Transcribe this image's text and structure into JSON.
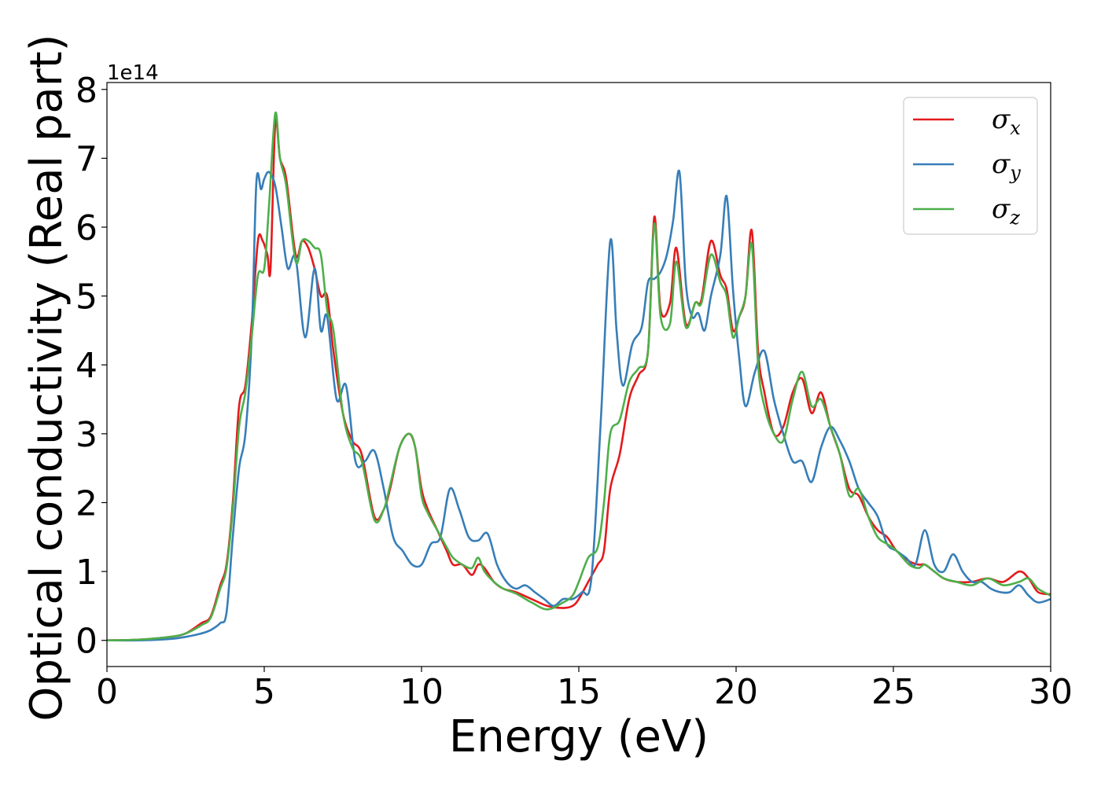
{
  "chart_data": {
    "type": "line",
    "xlabel": "Energy (eV)",
    "ylabel": "Optical conductivity (Real part)",
    "y_offset_label": "1e14",
    "y_scale": 100000000000000.0,
    "xlim": [
      0,
      30
    ],
    "ylim": [
      -0.38,
      8.1
    ],
    "xticks": [
      0,
      5,
      10,
      15,
      20,
      25,
      30
    ],
    "yticks": [
      0,
      1,
      2,
      3,
      4,
      5,
      6,
      7,
      8
    ],
    "grid": false,
    "legend_position": "top-right",
    "series": [
      {
        "name": "σx",
        "symbol": "σ",
        "subscript": "x",
        "color": "#e41a1c",
        "x": [
          0,
          1,
          2,
          2.5,
          3.0,
          3.3,
          3.6,
          3.8,
          4.0,
          4.2,
          4.4,
          4.6,
          4.8,
          4.95,
          5.1,
          5.2,
          5.35,
          5.5,
          5.7,
          6.0,
          6.2,
          6.4,
          6.6,
          6.8,
          7.0,
          7.2,
          7.5,
          7.8,
          8.1,
          8.5,
          8.8,
          9.0,
          9.3,
          9.6,
          9.8,
          10.0,
          10.2,
          10.5,
          10.8,
          11.0,
          11.3,
          11.6,
          11.8,
          12.0,
          12.3,
          12.6,
          13.0,
          13.5,
          14.0,
          14.5,
          14.8,
          15.0,
          15.3,
          15.6,
          15.8,
          16.0,
          16.3,
          16.6,
          16.9,
          17.2,
          17.4,
          17.6,
          17.9,
          18.1,
          18.4,
          18.7,
          18.9,
          19.2,
          19.5,
          19.7,
          19.9,
          20.1,
          20.3,
          20.5,
          20.7,
          20.9,
          21.2,
          21.5,
          21.8,
          22.1,
          22.4,
          22.7,
          23.0,
          23.3,
          23.6,
          23.9,
          24.2,
          24.5,
          24.8,
          25.1,
          25.5,
          25.8,
          26.0,
          26.3,
          26.6,
          27.0,
          27.5,
          28.0,
          28.5,
          29.0,
          29.3,
          29.6,
          30.0
        ],
        "y": [
          0.0,
          0.01,
          0.05,
          0.1,
          0.25,
          0.35,
          0.8,
          1.1,
          2.0,
          3.4,
          3.7,
          4.6,
          5.8,
          5.8,
          5.6,
          5.4,
          7.5,
          7.0,
          6.7,
          5.6,
          5.8,
          5.7,
          5.4,
          5.0,
          5.0,
          4.2,
          3.3,
          2.9,
          2.7,
          1.8,
          1.9,
          2.2,
          2.8,
          3.0,
          2.8,
          2.2,
          1.9,
          1.6,
          1.3,
          1.1,
          1.1,
          0.95,
          1.1,
          1.05,
          0.85,
          0.75,
          0.7,
          0.6,
          0.5,
          0.47,
          0.5,
          0.6,
          0.85,
          1.1,
          1.3,
          2.2,
          2.7,
          3.5,
          3.85,
          4.2,
          6.15,
          4.8,
          4.9,
          5.7,
          4.6,
          4.9,
          4.95,
          5.8,
          5.3,
          5.1,
          4.5,
          4.7,
          5.0,
          5.95,
          4.2,
          3.6,
          3.0,
          3.1,
          3.6,
          3.8,
          3.3,
          3.6,
          3.1,
          2.7,
          2.2,
          2.1,
          1.8,
          1.6,
          1.5,
          1.3,
          1.15,
          1.1,
          1.1,
          1.0,
          0.9,
          0.85,
          0.85,
          0.9,
          0.85,
          1.0,
          0.9,
          0.7,
          0.67
        ]
      },
      {
        "name": "σy",
        "symbol": "σ",
        "subscript": "y",
        "color": "#377eb8",
        "x": [
          0,
          1,
          2,
          2.5,
          3.0,
          3.3,
          3.6,
          3.8,
          4.0,
          4.2,
          4.4,
          4.6,
          4.75,
          4.9,
          5.0,
          5.15,
          5.35,
          5.55,
          5.75,
          6.0,
          6.3,
          6.6,
          6.8,
          7.0,
          7.3,
          7.6,
          7.9,
          8.2,
          8.5,
          8.8,
          9.1,
          9.4,
          9.7,
          10.0,
          10.3,
          10.6,
          10.9,
          11.2,
          11.5,
          11.8,
          12.1,
          12.4,
          12.7,
          13.0,
          13.3,
          13.6,
          13.9,
          14.2,
          14.5,
          14.8,
          15.1,
          15.4,
          15.7,
          16.0,
          16.2,
          16.4,
          16.7,
          17.0,
          17.2,
          17.4,
          17.6,
          17.8,
          18.0,
          18.2,
          18.4,
          18.6,
          18.8,
          19.0,
          19.2,
          19.5,
          19.7,
          19.9,
          20.1,
          20.3,
          20.6,
          20.9,
          21.2,
          21.5,
          21.8,
          22.1,
          22.4,
          22.7,
          23.0,
          23.3,
          23.6,
          23.9,
          24.2,
          24.5,
          24.8,
          25.1,
          25.4,
          25.7,
          26.0,
          26.3,
          26.6,
          26.9,
          27.2,
          27.5,
          27.8,
          28.1,
          28.4,
          28.7,
          29.0,
          29.3,
          29.6,
          30.0
        ],
        "y": [
          0.0,
          0.0,
          0.02,
          0.05,
          0.1,
          0.15,
          0.25,
          0.4,
          1.5,
          2.5,
          3.0,
          4.4,
          6.65,
          6.55,
          6.7,
          6.8,
          6.6,
          6.0,
          5.4,
          5.55,
          4.4,
          5.4,
          4.5,
          4.7,
          3.5,
          3.7,
          2.6,
          2.6,
          2.75,
          2.2,
          1.5,
          1.3,
          1.1,
          1.1,
          1.4,
          1.5,
          2.2,
          1.9,
          1.5,
          1.45,
          1.55,
          1.1,
          0.85,
          0.75,
          0.8,
          0.7,
          0.6,
          0.5,
          0.6,
          0.6,
          0.7,
          0.9,
          3.2,
          5.8,
          4.5,
          3.7,
          4.3,
          4.55,
          5.2,
          5.25,
          5.35,
          5.6,
          6.1,
          6.8,
          5.2,
          4.7,
          4.75,
          4.5,
          5.0,
          5.6,
          6.45,
          5.1,
          4.1,
          3.4,
          3.9,
          4.2,
          3.5,
          3.0,
          2.6,
          2.6,
          2.3,
          2.8,
          3.1,
          2.9,
          2.6,
          2.2,
          2.0,
          1.8,
          1.4,
          1.3,
          1.2,
          1.1,
          1.6,
          1.1,
          1.0,
          1.25,
          1.0,
          0.85,
          0.85,
          0.75,
          0.7,
          0.7,
          0.8,
          0.65,
          0.55,
          0.6
        ]
      },
      {
        "name": "σz",
        "symbol": "σ",
        "subscript": "z",
        "color": "#4daf4a",
        "x": [
          0,
          1,
          2,
          2.5,
          3.0,
          3.3,
          3.6,
          3.8,
          4.0,
          4.2,
          4.4,
          4.6,
          4.8,
          5.0,
          5.15,
          5.35,
          5.5,
          5.7,
          6.0,
          6.2,
          6.4,
          6.6,
          6.8,
          7.0,
          7.2,
          7.5,
          7.8,
          8.1,
          8.5,
          8.8,
          9.0,
          9.3,
          9.6,
          9.8,
          10.0,
          10.2,
          10.5,
          10.8,
          11.0,
          11.3,
          11.6,
          11.8,
          12.0,
          12.3,
          12.6,
          13.0,
          13.5,
          14.0,
          14.5,
          14.8,
          15.0,
          15.3,
          15.6,
          15.8,
          16.0,
          16.3,
          16.6,
          16.9,
          17.2,
          17.4,
          17.6,
          17.9,
          18.1,
          18.4,
          18.7,
          18.9,
          19.2,
          19.5,
          19.7,
          19.9,
          20.1,
          20.3,
          20.5,
          20.7,
          20.9,
          21.2,
          21.5,
          21.8,
          22.1,
          22.4,
          22.7,
          23.0,
          23.3,
          23.6,
          23.9,
          24.2,
          24.5,
          24.8,
          25.1,
          25.5,
          25.8,
          26.0,
          26.3,
          26.6,
          27.0,
          27.5,
          28.0,
          28.5,
          29.0,
          29.3,
          29.6,
          30.0
        ],
        "y": [
          0.0,
          0.01,
          0.05,
          0.1,
          0.22,
          0.33,
          0.75,
          1.05,
          1.9,
          3.1,
          3.6,
          4.4,
          5.3,
          5.4,
          6.3,
          7.65,
          7.0,
          6.6,
          5.5,
          5.8,
          5.8,
          5.7,
          5.6,
          4.8,
          4.5,
          3.3,
          2.8,
          2.6,
          1.75,
          1.9,
          2.25,
          2.8,
          3.0,
          2.8,
          2.1,
          1.85,
          1.6,
          1.35,
          1.2,
          1.1,
          1.05,
          1.2,
          1.0,
          0.85,
          0.75,
          0.68,
          0.55,
          0.45,
          0.55,
          0.65,
          0.85,
          1.2,
          1.35,
          2.0,
          3.0,
          3.2,
          3.75,
          3.95,
          4.2,
          6.05,
          4.7,
          4.6,
          5.5,
          4.55,
          4.9,
          4.9,
          5.6,
          5.2,
          5.0,
          4.4,
          4.7,
          5.0,
          5.75,
          4.0,
          3.4,
          3.0,
          2.9,
          3.5,
          3.9,
          3.4,
          3.5,
          3.1,
          2.7,
          2.1,
          2.2,
          1.8,
          1.5,
          1.4,
          1.3,
          1.1,
          1.05,
          1.1,
          1.0,
          0.9,
          0.85,
          0.8,
          0.9,
          0.8,
          0.85,
          0.9,
          0.75,
          0.65
        ]
      }
    ]
  }
}
